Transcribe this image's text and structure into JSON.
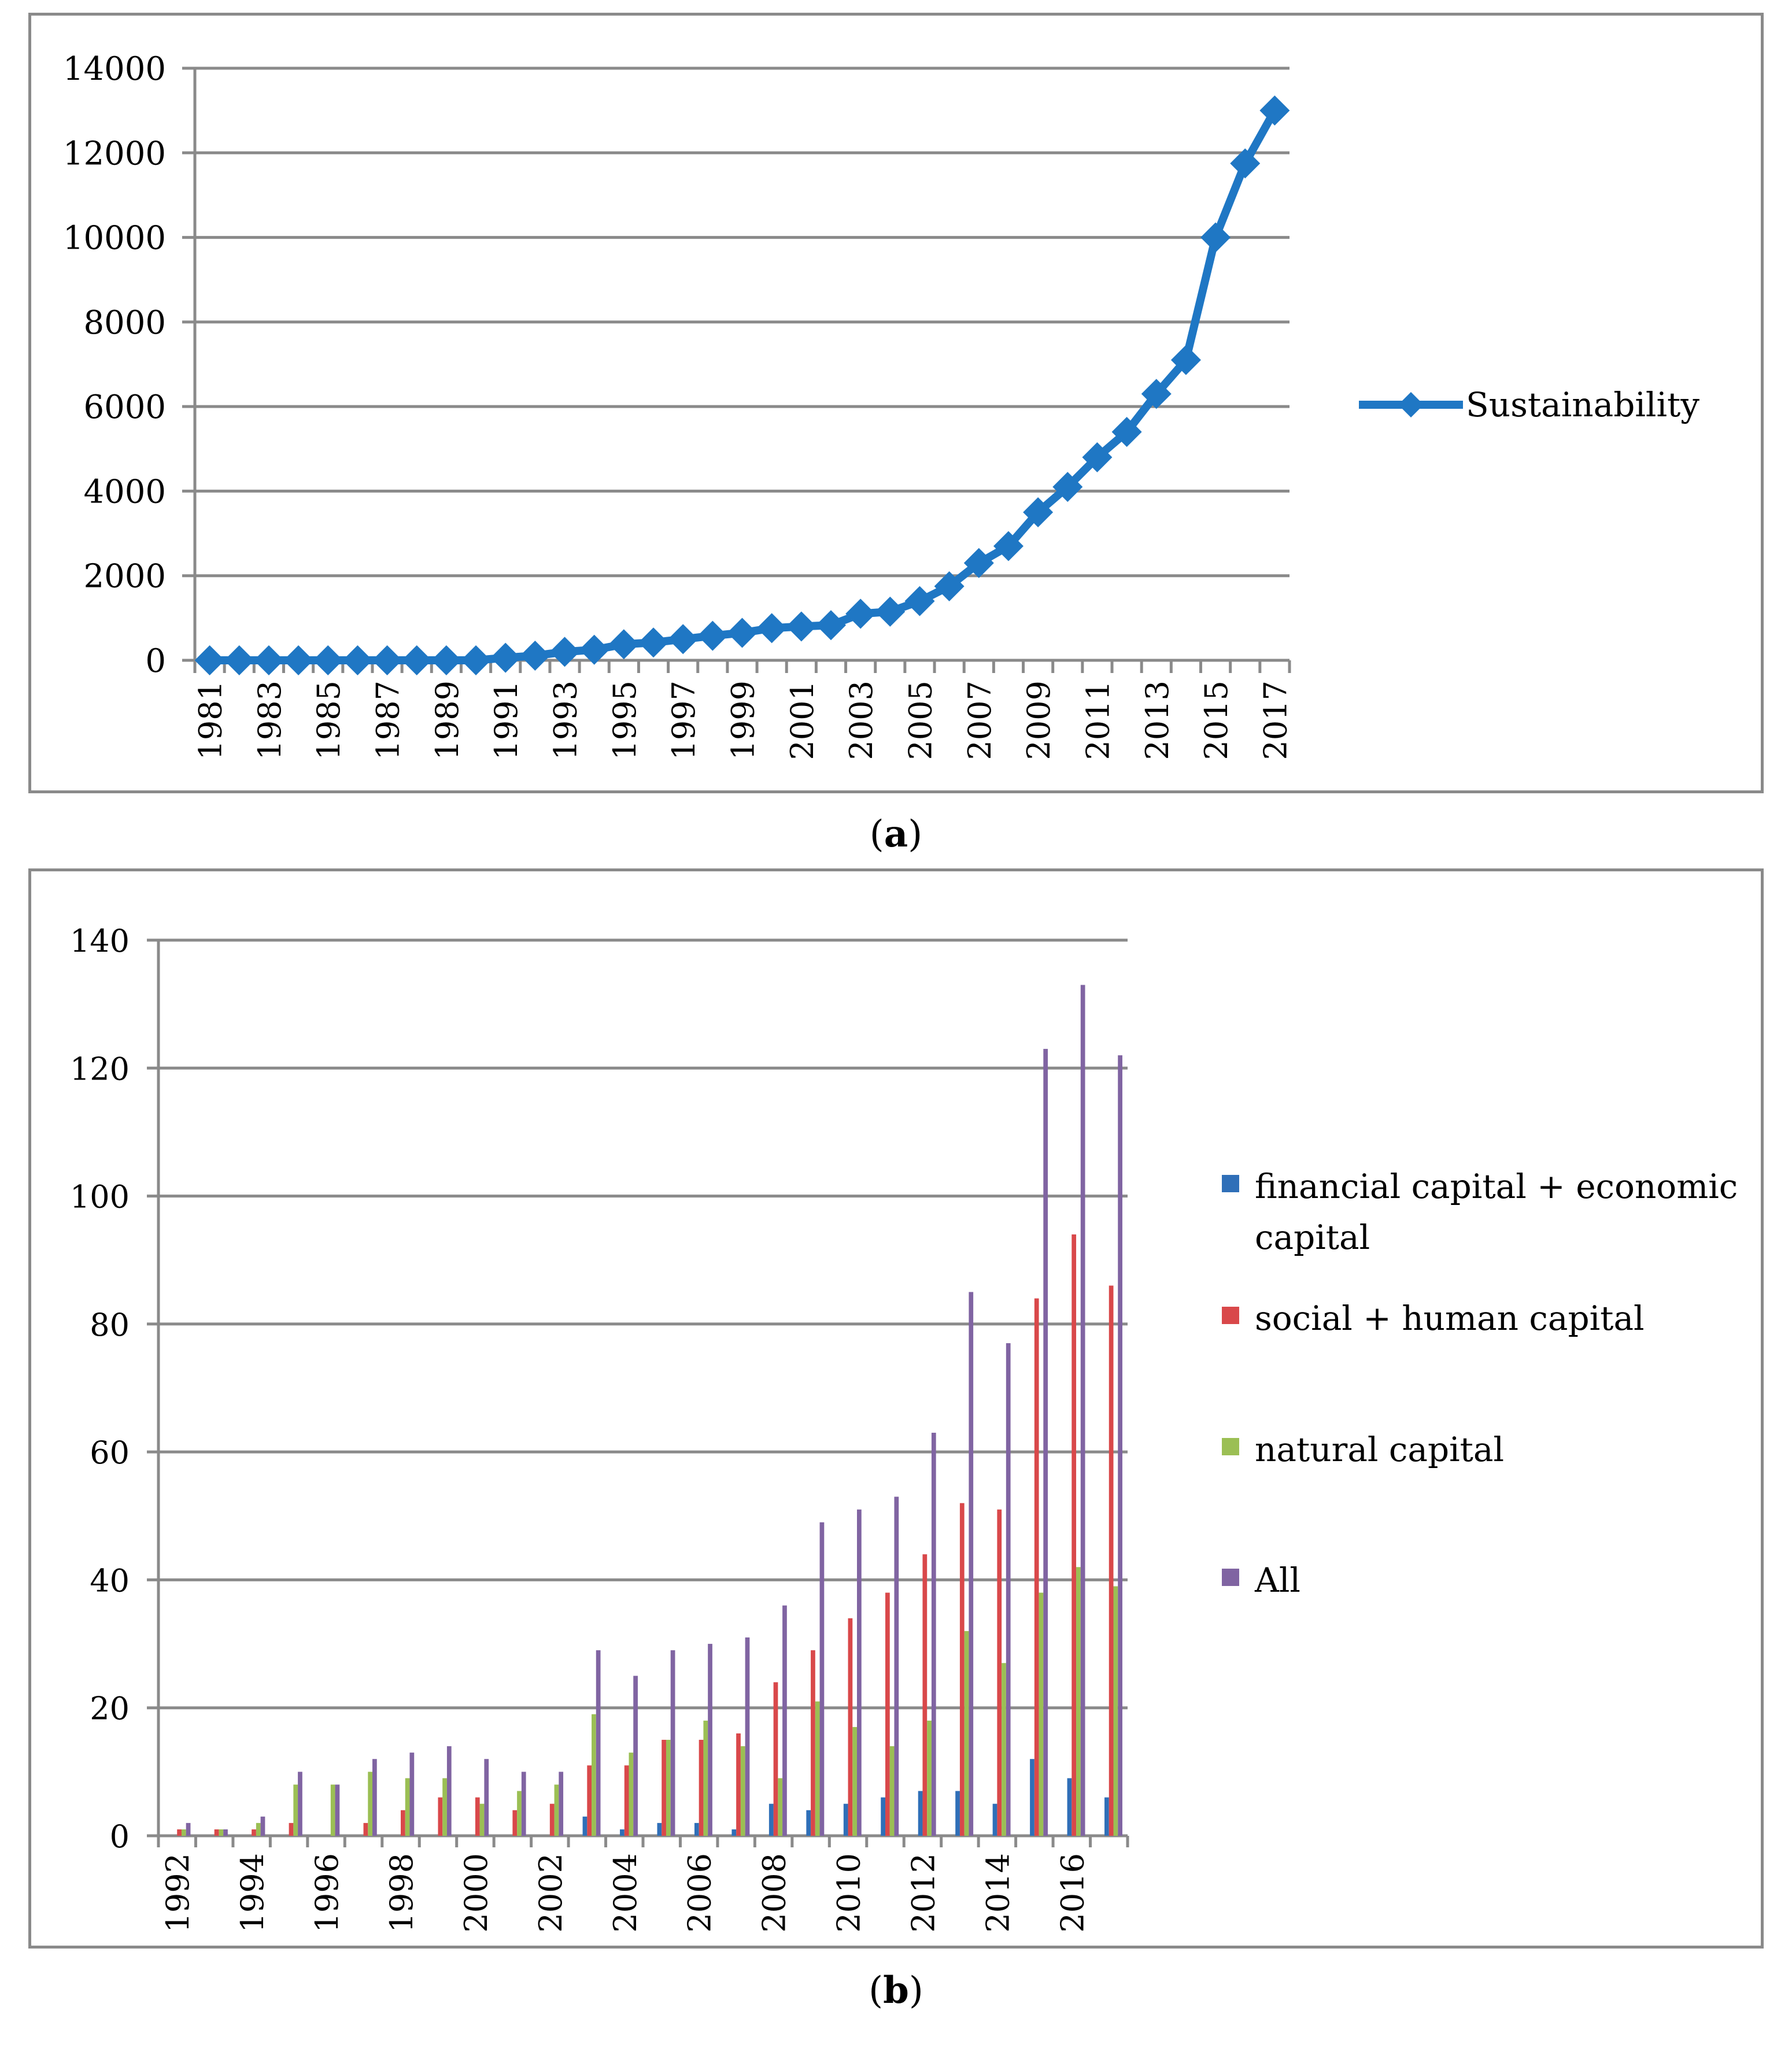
{
  "chart_data": [
    {
      "type": "line",
      "panel_label": "a",
      "title": "",
      "xlabel": "",
      "ylabel": "",
      "ylim": [
        0,
        14000
      ],
      "yticks": [
        "0",
        "2000",
        "4000",
        "6000",
        "8000",
        "10000",
        "12000",
        "14000"
      ],
      "x": [
        1981,
        1982,
        1983,
        1984,
        1985,
        1986,
        1987,
        1988,
        1989,
        1990,
        1991,
        1992,
        1993,
        1994,
        1995,
        1996,
        1997,
        1998,
        1999,
        2000,
        2001,
        2002,
        2003,
        2004,
        2005,
        2006,
        2007,
        2008,
        2009,
        2010,
        2011,
        2012,
        2013,
        2014,
        2015,
        2016,
        2017
      ],
      "xtick_labels": [
        "1981",
        "1983",
        "1985",
        "1987",
        "1989",
        "1991",
        "1993",
        "1995",
        "1997",
        "1999",
        "2001",
        "2003",
        "2005",
        "2007",
        "2009",
        "2011",
        "2013",
        "2015",
        "2017"
      ],
      "series": [
        {
          "name": "Sustainability",
          "color": "#1f77c4",
          "values": [
            0,
            0,
            0,
            0,
            0,
            0,
            0,
            0,
            0,
            0,
            60,
            110,
            200,
            250,
            380,
            420,
            500,
            580,
            650,
            760,
            800,
            830,
            1100,
            1150,
            1400,
            1750,
            2300,
            2700,
            3500,
            4100,
            4800,
            5400,
            6300,
            7100,
            10000,
            11750,
            13000
          ]
        }
      ],
      "legend_position": "right"
    },
    {
      "type": "bar",
      "panel_label": "b",
      "title": "",
      "xlabel": "",
      "ylabel": "",
      "ylim": [
        0,
        140
      ],
      "yticks": [
        "0",
        "20",
        "40",
        "60",
        "80",
        "100",
        "120",
        "140"
      ],
      "categories": [
        "1992",
        "1993",
        "1994",
        "1995",
        "1996",
        "1997",
        "1998",
        "1999",
        "2000",
        "2001",
        "2002",
        "2003",
        "2004",
        "2005",
        "2006",
        "2007",
        "2008",
        "2009",
        "2010",
        "2011",
        "2012",
        "2013",
        "2014",
        "2015",
        "2016",
        "2017"
      ],
      "xtick_labels": [
        "1992",
        "1994",
        "1996",
        "1998",
        "2000",
        "2002",
        "2004",
        "2006",
        "2008",
        "2010",
        "2012",
        "2014",
        "2016"
      ],
      "series": [
        {
          "name": "financial capital + economic capital",
          "color": "#2f6fb8",
          "values": [
            0,
            0,
            0,
            0,
            0,
            0,
            0,
            0,
            0,
            0,
            0,
            3,
            1,
            2,
            2,
            1,
            5,
            4,
            5,
            6,
            7,
            7,
            5,
            12,
            9,
            6
          ]
        },
        {
          "name": "social +  human capital",
          "color": "#d9484a",
          "values": [
            1,
            1,
            1,
            2,
            0,
            2,
            4,
            6,
            6,
            4,
            5,
            11,
            11,
            15,
            15,
            16,
            24,
            29,
            34,
            38,
            44,
            52,
            51,
            84,
            94,
            86
          ]
        },
        {
          "name": "natural capital",
          "color": "#9bbf54",
          "values": [
            1,
            1,
            2,
            8,
            8,
            10,
            9,
            9,
            5,
            7,
            8,
            19,
            13,
            15,
            18,
            14,
            9,
            21,
            17,
            14,
            18,
            32,
            27,
            38,
            42,
            39
          ]
        },
        {
          "name": "All",
          "color": "#8064a2",
          "values": [
            2,
            1,
            3,
            10,
            8,
            12,
            13,
            14,
            12,
            10,
            10,
            29,
            25,
            29,
            30,
            31,
            36,
            49,
            51,
            53,
            63,
            85,
            77,
            123,
            133,
            122
          ]
        }
      ],
      "legend_position": "right"
    }
  ],
  "captions": {
    "a_open": "(",
    "a_label": "a",
    "a_close": ")",
    "b_open": "(",
    "b_label": "b",
    "b_close": ")"
  },
  "legend_b_lines": [
    [
      "financial capital + economic",
      "capital"
    ],
    [
      "social +  human capital"
    ],
    [
      "natural capital"
    ],
    [
      "All"
    ]
  ]
}
